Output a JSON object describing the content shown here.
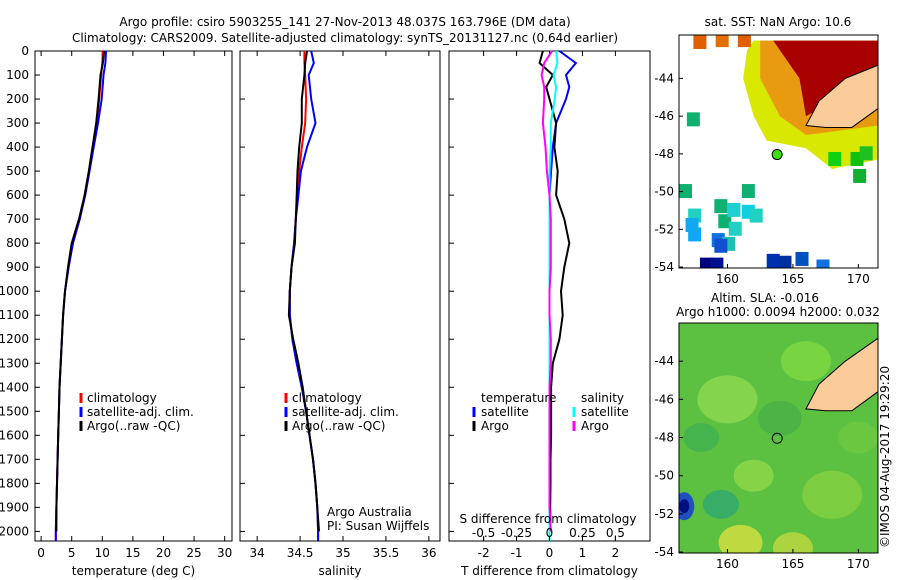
{
  "title": {
    "line1": "Argo profile: csiro 5903255_141 27-Nov-2013 48.037S 163.796E (DM data)",
    "line2": "Climatology: CARS2009. Satellite-adjusted climatology: synTS_20131127.nc (0.64d earlier)"
  },
  "colors": {
    "climatology": "#ff0000",
    "satellite": "#0000ff",
    "argo": "#000000",
    "sal_satellite": "#00ffff",
    "sal_argo": "#ff00ff",
    "land": "#fccb9a"
  },
  "chart_data": [
    {
      "type": "line",
      "id": "temperature",
      "xlabel": "temperature (deg C)",
      "ylabel": "",
      "xlim": [
        -1,
        31.2
      ],
      "ylim": [
        2040,
        0
      ],
      "xticks": [
        "0",
        "5",
        "10",
        "15",
        "20",
        "25",
        "30"
      ],
      "xtick_values": [
        0,
        5,
        10,
        15,
        20,
        25,
        30
      ],
      "yticks": [
        "0",
        "100",
        "200",
        "300",
        "400",
        "500",
        "600",
        "700",
        "800",
        "900",
        "1000",
        "1100",
        "1200",
        "1300",
        "1400",
        "1500",
        "1600",
        "1700",
        "1800",
        "1900",
        "2000"
      ],
      "ytick_values": [
        0,
        100,
        200,
        300,
        400,
        500,
        600,
        700,
        800,
        900,
        1000,
        1100,
        1200,
        1300,
        1400,
        1500,
        1600,
        1700,
        1800,
        1900,
        2000
      ],
      "legend": [
        "climatology",
        "satellite-adj. clim.",
        "Argo(..raw -QC)"
      ],
      "depth": [
        0,
        50,
        100,
        200,
        300,
        400,
        500,
        600,
        700,
        800,
        900,
        1000,
        1100,
        1200,
        1300,
        1400,
        1500,
        1600,
        1700,
        1800,
        1900,
        2000,
        2040
      ],
      "series": [
        {
          "name": "climatology",
          "values": [
            10.1,
            10.0,
            9.8,
            9.5,
            9.1,
            8.5,
            7.9,
            7.2,
            6.3,
            5.2,
            4.5,
            3.9,
            3.6,
            3.4,
            3.2,
            3.0,
            2.9,
            2.8,
            2.7,
            2.6,
            2.5,
            2.4,
            2.4
          ]
        },
        {
          "name": "satellite-adj. clim.",
          "values": [
            10.6,
            10.5,
            10.2,
            9.9,
            9.3,
            8.6,
            7.9,
            7.2,
            6.3,
            5.2,
            4.5,
            3.9,
            3.6,
            3.4,
            3.2,
            3.0,
            2.9,
            2.8,
            2.7,
            2.6,
            2.5,
            2.4,
            2.4
          ]
        },
        {
          "name": "Argo(..raw -QC)",
          "values": [
            10.3,
            10.1,
            9.7,
            9.4,
            9.0,
            8.4,
            7.8,
            7.1,
            6.2,
            5.0,
            4.4,
            3.9,
            3.6,
            3.4,
            3.2,
            3.0,
            2.9,
            2.8,
            2.7,
            2.6,
            2.5,
            2.5,
            null
          ]
        }
      ]
    },
    {
      "type": "line",
      "id": "salinity",
      "xlabel": "salinity",
      "xlim": [
        33.8,
        36.13
      ],
      "ylim": [
        2040,
        0
      ],
      "xticks": [
        "34",
        "34.5",
        "35",
        "35.5",
        "36"
      ],
      "xtick_values": [
        34,
        34.5,
        35,
        35.5,
        36
      ],
      "legend": [
        "climatology",
        "satellite-adj. clim.",
        "Argo(..raw -QC)"
      ],
      "annotation": [
        "Argo Australia",
        "PI: Susan Wijffels"
      ],
      "depth": [
        0,
        50,
        100,
        200,
        300,
        400,
        500,
        600,
        700,
        800,
        900,
        1000,
        1100,
        1200,
        1300,
        1400,
        1500,
        1600,
        1700,
        1800,
        1900,
        2000,
        2040
      ],
      "series": [
        {
          "name": "climatology",
          "values": [
            34.55,
            34.55,
            34.56,
            34.57,
            34.56,
            34.52,
            34.49,
            34.47,
            34.45,
            34.43,
            34.4,
            34.38,
            34.38,
            34.41,
            34.46,
            34.52,
            34.57,
            34.61,
            34.65,
            34.68,
            34.7,
            34.71,
            34.71
          ]
        },
        {
          "name": "satellite-adj. clim.",
          "values": [
            34.63,
            34.66,
            34.6,
            34.63,
            34.68,
            34.58,
            34.51,
            34.48,
            34.45,
            34.43,
            34.4,
            34.38,
            34.38,
            34.41,
            34.46,
            34.52,
            34.57,
            34.61,
            34.65,
            34.68,
            34.7,
            34.71,
            34.71
          ]
        },
        {
          "name": "Argo(..raw -QC)",
          "values": [
            34.58,
            34.56,
            34.55,
            34.52,
            34.52,
            34.49,
            34.47,
            34.46,
            34.45,
            34.44,
            34.4,
            34.38,
            34.37,
            34.42,
            34.48,
            34.53,
            34.57,
            34.61,
            34.65,
            34.68,
            34.7,
            34.72,
            null
          ]
        }
      ]
    },
    {
      "type": "line",
      "id": "difference",
      "xlabel": "T difference from climatology",
      "x2label": "S difference from climatology",
      "xlim": [
        -3.05,
        3.05
      ],
      "ylim": [
        2040,
        0
      ],
      "xticks": [
        "-2",
        "-1",
        "0",
        "1",
        "2"
      ],
      "xtick_values": [
        -2,
        -1,
        0,
        1,
        2
      ],
      "x2ticks": [
        "-0.5",
        "-0.25",
        "0",
        "0.25",
        "0.5"
      ],
      "x2tick_values": [
        -0.5,
        -0.25,
        0,
        0.25,
        0.5
      ],
      "legend_temperature": {
        "title": "temperature",
        "items": [
          "satellite",
          "Argo"
        ]
      },
      "legend_salinity": {
        "title": "salinity",
        "items": [
          "satellite",
          "Argo"
        ]
      },
      "depth": [
        0,
        50,
        100,
        150,
        200,
        300,
        400,
        500,
        600,
        700,
        800,
        900,
        1000,
        1100,
        1200,
        1300,
        1400,
        1500,
        1600,
        1700,
        1800,
        1900,
        2000,
        2040
      ],
      "series": [
        {
          "name": "temperature satellite",
          "values": [
            0.3,
            0.8,
            0.5,
            0.6,
            0.5,
            0.2,
            0.1,
            0.05,
            0,
            0,
            0,
            0,
            0,
            0,
            0,
            0,
            0,
            0,
            0,
            0,
            0,
            0,
            0,
            0
          ]
        },
        {
          "name": "temperature Argo",
          "values": [
            -0.2,
            -0.3,
            0.1,
            -0.1,
            0.0,
            0.2,
            0.15,
            0.25,
            0.2,
            0.45,
            0.6,
            0.45,
            0.35,
            0.4,
            0.3,
            0.1,
            0.05,
            0.05,
            0.05,
            0.03,
            0.03,
            0.02,
            0.03,
            null
          ]
        },
        {
          "name": "salinity satellite",
          "values": [
            0.05,
            0.06,
            0.03,
            0.05,
            0.04,
            0.01,
            0.01,
            0.0,
            0.0,
            0.0,
            0.0,
            0.0,
            0.0,
            0.0,
            0.0,
            0.0,
            0.0,
            0.0,
            0.0,
            0.0,
            0.0,
            0.0,
            0.0,
            0.0
          ]
        },
        {
          "name": "salinity Argo",
          "values": [
            0.02,
            -0.04,
            -0.06,
            -0.04,
            -0.04,
            -0.05,
            -0.03,
            -0.02,
            0.0,
            0.01,
            0.01,
            0.01,
            0.0,
            0.0,
            0.01,
            0.01,
            0.0,
            0.0,
            0.0,
            0.0,
            0.0,
            0.0,
            0.01,
            null
          ]
        }
      ]
    }
  ],
  "maps": {
    "sst": {
      "title": "sat. SST: NaN Argo: 10.6",
      "lon_ticks": [
        "160",
        "165",
        "170"
      ],
      "lon_values": [
        160,
        165,
        170
      ],
      "lat_ticks": [
        "-44",
        "-46",
        "-48",
        "-50",
        "-52",
        "-54"
      ],
      "lat_values": [
        -44,
        -46,
        -48,
        -50,
        -52,
        -54
      ],
      "argo_position": {
        "lon": 163.796,
        "lat": -48.037
      }
    },
    "sla": {
      "title1": "Altim. SLA: -0.016",
      "title2": "Argo h1000: 0.0094 h2000: 0.032",
      "lon_ticks": [
        "160",
        "165",
        "170"
      ],
      "lon_values": [
        160,
        165,
        170
      ],
      "lat_ticks": [
        "-44",
        "-46",
        "-48",
        "-50",
        "-52",
        "-54"
      ],
      "lat_values": [
        -44,
        -46,
        -48,
        -50,
        -52,
        -54
      ]
    }
  },
  "credit": "©IMOS 04-Aug-2017 19:29:20"
}
